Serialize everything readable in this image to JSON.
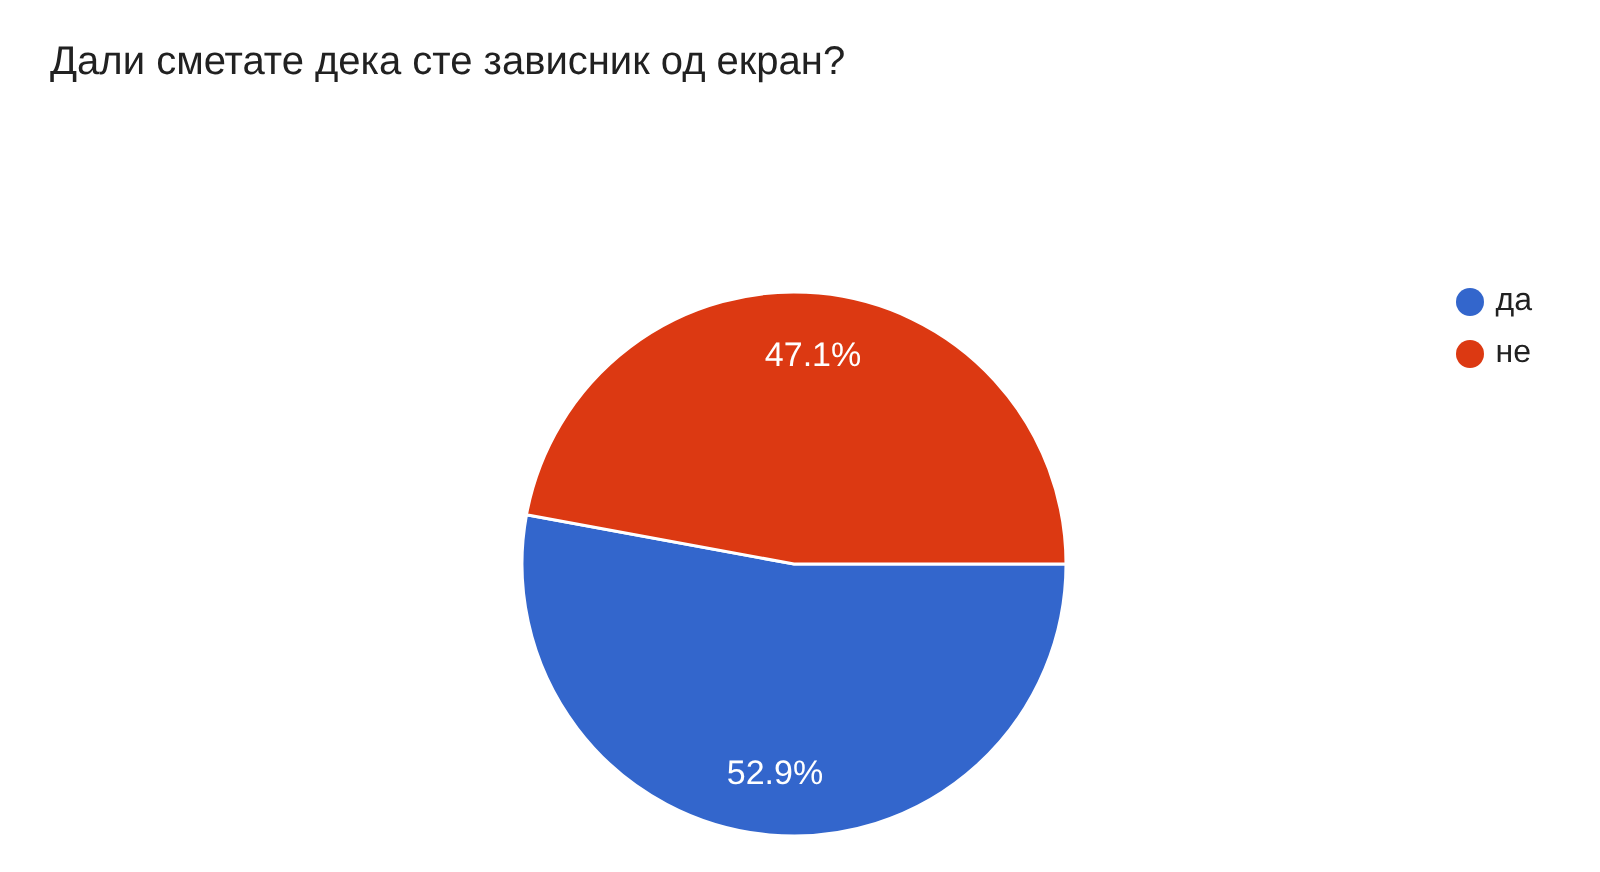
{
  "chart_data": {
    "type": "pie",
    "title": "Дали сметате дека сте зависник од екран?",
    "categories": [
      "да",
      "не"
    ],
    "values": [
      52.9,
      47.1
    ],
    "colors": [
      "#3366cc",
      "#dc3912"
    ],
    "value_labels": [
      "52.9%",
      "47.1%"
    ],
    "legend": "right"
  }
}
